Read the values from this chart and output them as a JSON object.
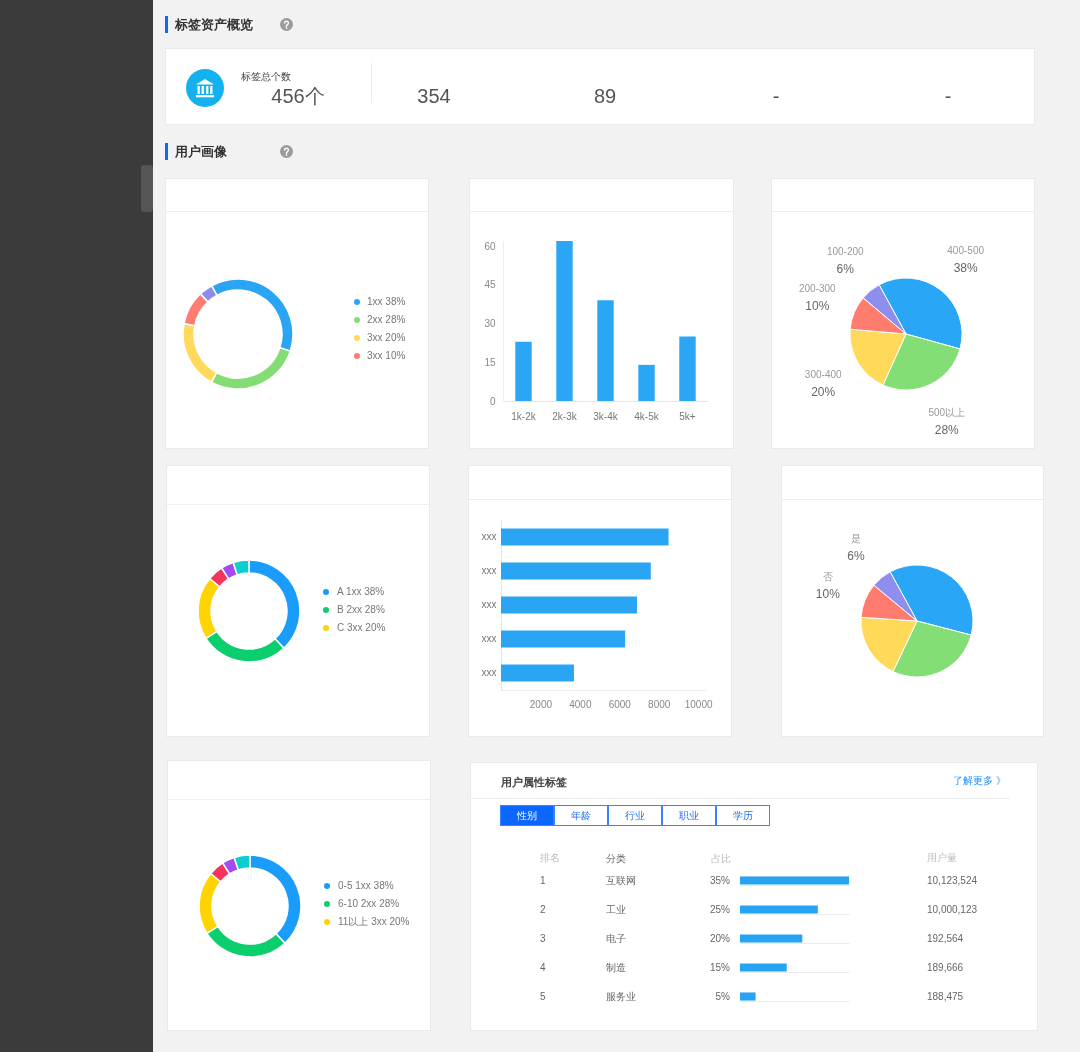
{
  "chart_data": [
    {
      "type": "other",
      "title": "标签资产概览",
      "categories": [
        "标签总个数",
        null,
        null,
        null,
        null
      ],
      "value_labels": [
        "456个",
        "354",
        "89",
        "-",
        "-"
      ]
    },
    {
      "type": "other",
      "title": "用户画像"
    },
    {
      "type": "donut",
      "categories": [
        "1xx 38%",
        "2xx 28%",
        "3xx 20%",
        "3xx 10%",
        null
      ],
      "values": [
        38,
        28,
        20,
        10,
        4
      ],
      "colors": [
        "#2aa5f4",
        "#84dd74",
        "#ffd95b",
        "#fe7c70",
        "#8d8cee"
      ],
      "legend": "right"
    },
    {
      "type": "bar",
      "categories": [
        "1k-2k",
        "2k-3k",
        "3k-4k",
        "4k-5k",
        "5k+"
      ],
      "values": [
        23,
        62,
        39,
        14,
        25
      ],
      "color": "#2aa6f5",
      "ylim": [
        0,
        62
      ],
      "yticks": [
        0,
        15,
        30,
        45,
        60
      ]
    },
    {
      "type": "pie",
      "categories": [
        "400-500",
        "500以上",
        "300-400",
        "200-300",
        "100-200"
      ],
      "values": [
        38,
        28,
        20,
        10,
        6
      ],
      "colors": [
        "#29a6f5",
        "#83df75",
        "#ffd95a",
        "#ff7c6f",
        "#8e8eee"
      ],
      "value_labels": [
        "38%",
        "28%",
        "20%",
        "10%",
        "6%"
      ]
    },
    {
      "type": "donut",
      "categories": [
        "A 1xx 38%",
        "B 2xx 28%",
        "C 3xx 20%",
        null,
        null,
        null
      ],
      "values": [
        38,
        28,
        20,
        5,
        4,
        5
      ],
      "colors": [
        "#1a9cfb",
        "#0bcf6d",
        "#ffd400",
        "#f5335c",
        "#a24bf2",
        "#0dcdd1"
      ],
      "legend": "right"
    },
    {
      "type": "bar",
      "orientation": "horizontal",
      "categories": [
        "xxx",
        "xxx",
        "xxx",
        "xxx",
        "xxx"
      ],
      "values": [
        8500,
        7600,
        6900,
        6300,
        3700
      ],
      "color": "#2aa5f4",
      "xlim": [
        0,
        10400
      ],
      "xticks": [
        2000,
        4000,
        6000,
        8000,
        10000
      ]
    },
    {
      "type": "pie",
      "categories": [
        null,
        null,
        null,
        "否",
        "是"
      ],
      "values": [
        37,
        28,
        19,
        10,
        6
      ],
      "colors": [
        "#29a6f5",
        "#83df75",
        "#ffd95a",
        "#ff7c6f",
        "#8e8eee"
      ],
      "value_labels": [
        null,
        null,
        null,
        "10%",
        "6%"
      ]
    },
    {
      "type": "donut",
      "categories": [
        "0-5 1xx 38%",
        "6-10 2xx 28%",
        "11以上 3xx 20%",
        null,
        null,
        null
      ],
      "values": [
        38,
        28,
        20,
        5,
        4,
        5
      ],
      "colors": [
        "#1a9cfb",
        "#0bcf6d",
        "#ffd400",
        "#f5335c",
        "#a24bf2",
        "#0dcdd1"
      ],
      "legend": "right"
    },
    {
      "type": "other",
      "title": "用户属性标签",
      "annotations": [
        "了解更多 》",
        "性别",
        "年龄",
        "行业",
        "职业",
        "学历"
      ]
    },
    {
      "type": "bar",
      "orientation": "horizontal",
      "categories": [
        "互联网",
        "工业",
        "电子",
        "制造",
        "服务业"
      ],
      "values": [
        35,
        25,
        20,
        15,
        5
      ],
      "color": "#26a3f3",
      "value_labels": [
        "35%",
        "25%",
        "20%",
        "15%",
        "5%"
      ],
      "ylabel": "分类",
      "xlabel": "占比",
      "grid": "y",
      "annotations": [
        "排名",
        "1",
        "2",
        "3",
        "4",
        "5",
        "用户量",
        "10,123,524",
        "10,000,123",
        "192,564",
        "189,666",
        "188,475"
      ]
    }
  ]
}
